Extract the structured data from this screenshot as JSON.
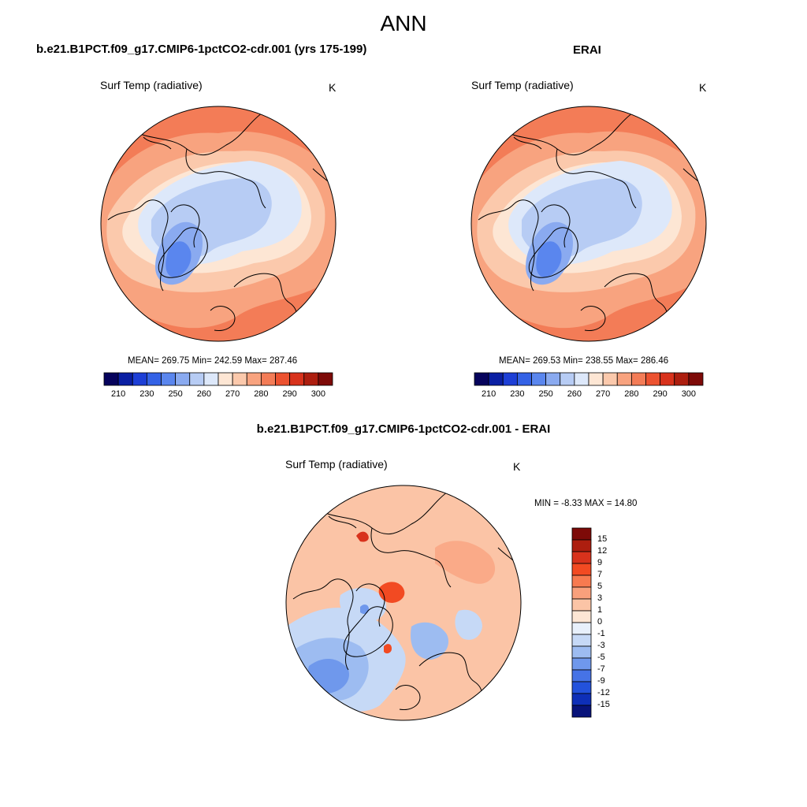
{
  "figure": {
    "title": "ANN",
    "left_panel_title": "b.e21.B1PCT.f09_g17.CMIP6-1pctCO2-cdr.001 (yrs 175-199)",
    "right_panel_title": "ERAI",
    "diff_panel_title": "b.e21.B1PCT.f09_g17.CMIP6-1pctCO2-cdr.001 - ERAI"
  },
  "chart_data": [
    {
      "type": "heatmap",
      "projection": "north polar stereographic",
      "variable": "Surf Temp (radiative)",
      "units": "K",
      "stats_text": "MEAN= 269.75  Min= 242.59  Max= 287.46",
      "mean": 269.75,
      "min": 242.59,
      "max": 287.46,
      "colorbar": {
        "orientation": "horizontal",
        "levels": [
          210,
          220,
          230,
          240,
          250,
          255,
          260,
          265,
          270,
          275,
          280,
          285,
          290,
          295,
          300
        ],
        "tick_labels": [
          "210",
          "230",
          "250",
          "260",
          "270",
          "280",
          "290",
          "300"
        ],
        "colors": [
          "#06035c",
          "#0a1fa3",
          "#1d3fd6",
          "#3462e6",
          "#5a86ee",
          "#8aaaf0",
          "#b7ccf4",
          "#dde8fa",
          "#fde6d4",
          "#fbc9ac",
          "#f8a37f",
          "#f37c57",
          "#ec5230",
          "#d8321c",
          "#ad1e0f",
          "#7d0a08"
        ]
      }
    },
    {
      "type": "heatmap",
      "projection": "north polar stereographic",
      "variable": "Surf Temp (radiative)",
      "units": "K",
      "stats_text": "MEAN= 269.53  Min= 238.55  Max= 286.46",
      "mean": 269.53,
      "min": 238.55,
      "max": 286.46,
      "colorbar": {
        "orientation": "horizontal",
        "levels": [
          210,
          220,
          230,
          240,
          250,
          255,
          260,
          265,
          270,
          275,
          280,
          285,
          290,
          295,
          300
        ],
        "tick_labels": [
          "210",
          "230",
          "250",
          "260",
          "270",
          "280",
          "290",
          "300"
        ],
        "colors": [
          "#06035c",
          "#0a1fa3",
          "#1d3fd6",
          "#3462e6",
          "#5a86ee",
          "#8aaaf0",
          "#b7ccf4",
          "#dde8fa",
          "#fde6d4",
          "#fbc9ac",
          "#f8a37f",
          "#f37c57",
          "#ec5230",
          "#d8321c",
          "#ad1e0f",
          "#7d0a08"
        ]
      }
    },
    {
      "type": "heatmap",
      "projection": "north polar stereographic",
      "variable": "Surf Temp (radiative)",
      "units": "K",
      "stats_text": "MIN =  -8.33 MAX =  14.80",
      "min": -8.33,
      "max": 14.8,
      "colorbar": {
        "orientation": "vertical",
        "tick_labels": [
          "15",
          "12",
          "9",
          "7",
          "5",
          "3",
          "1",
          "0",
          "-1",
          "-3",
          "-5",
          "-7",
          "-9",
          "-12",
          "-15"
        ],
        "colors": [
          "#7d0a08",
          "#ad1e0f",
          "#d8321c",
          "#f24a22",
          "#f77a50",
          "#f9a07c",
          "#fbc4a6",
          "#fde6d4",
          "#e8f0fb",
          "#c6d9f6",
          "#9dbcf1",
          "#6f98ec",
          "#4673e6",
          "#2352dc",
          "#0e2fb8",
          "#08137a"
        ]
      }
    }
  ]
}
